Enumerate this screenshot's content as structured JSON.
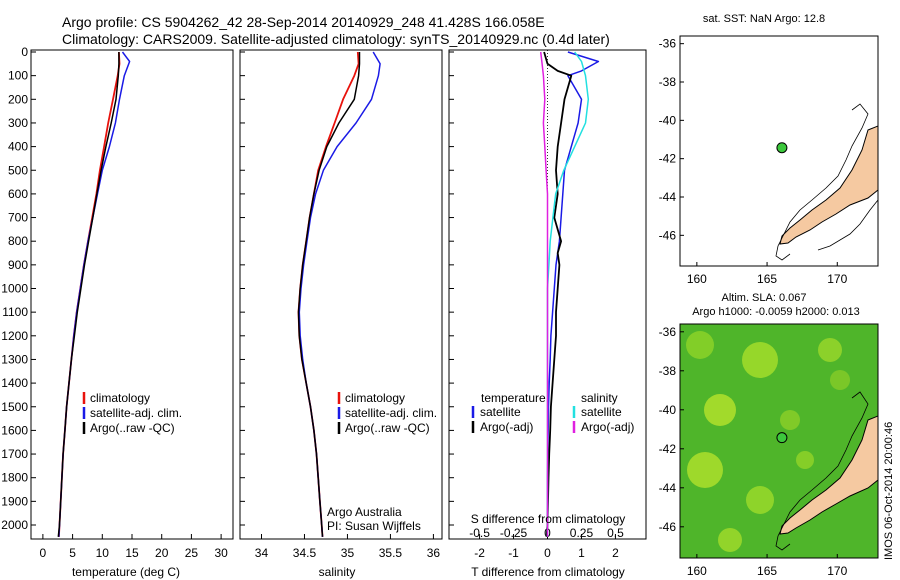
{
  "header": {
    "title_line1": "Argo profile: CS 5904262_42 28-Sep-2014 20140929_248 41.428S 166.058E",
    "title_line2": "Climatology: CARS2009. Satellite-adjusted climatology: synTS_20140929.nc (0.4d later)"
  },
  "colors": {
    "climatology": "#e8120c",
    "satellite": "#1a1ae6",
    "argo": "#000000",
    "satellite_s": "#22e0e0",
    "argo_s": "#e020e0",
    "land": "#f5c9a1",
    "float": "#3cc83c"
  },
  "depth_ticks": [
    "0",
    "100",
    "200",
    "300",
    "400",
    "500",
    "600",
    "700",
    "800",
    "900",
    "1000",
    "1100",
    "1200",
    "1300",
    "1400",
    "1500",
    "1600",
    "1700",
    "1800",
    "1900",
    "2000"
  ],
  "legend_main": [
    "climatology",
    "satellite-adj. clim.",
    "Argo(..raw -QC)"
  ],
  "legend_diff": {
    "t_header": "temperature",
    "s_header": "salinity",
    "t_items": [
      "satellite",
      "Argo(-adj)"
    ],
    "s_items": [
      "satellite",
      "Argo(-adj)"
    ]
  },
  "credits": {
    "org": "Argo Australia",
    "pi": "PI: Susan Wijffels"
  },
  "diff_labels": {
    "s_label": "S difference from climatology",
    "t_label": "T difference from climatology"
  },
  "map1": {
    "title": "sat. SST: NaN Argo: 12.8"
  },
  "map2": {
    "title_line1": "Altim. SLA: 0.067",
    "title_line2": "Argo h1000: -0.0059 h2000: 0.013",
    "stamp": "IMOS 06-Oct-2014 20:00:46"
  },
  "chart_data": [
    {
      "type": "line",
      "id": "temperature",
      "xlabel": "temperature (deg C)",
      "ylabel": "",
      "xlim": [
        -2,
        32
      ],
      "ylim": [
        2070,
        0
      ],
      "xticks": [
        "0",
        "5",
        "10",
        "15",
        "20",
        "25",
        "30"
      ],
      "series": [
        {
          "name": "climatology",
          "points": [
            [
              12.8,
              0
            ],
            [
              12.9,
              50
            ],
            [
              12.6,
              100
            ],
            [
              11.8,
              200
            ],
            [
              11.0,
              300
            ],
            [
              10.3,
              400
            ],
            [
              9.6,
              500
            ],
            [
              9.0,
              600
            ],
            [
              8.3,
              700
            ],
            [
              7.6,
              800
            ],
            [
              6.9,
              900
            ],
            [
              6.3,
              1000
            ],
            [
              5.7,
              1100
            ],
            [
              5.2,
              1200
            ],
            [
              4.8,
              1300
            ],
            [
              4.4,
              1400
            ],
            [
              4.0,
              1500
            ],
            [
              3.7,
              1600
            ],
            [
              3.4,
              1700
            ],
            [
              3.2,
              1800
            ],
            [
              3.0,
              1900
            ],
            [
              2.8,
              2000
            ],
            [
              2.7,
              2050
            ]
          ]
        },
        {
          "name": "satellite-adj. clim.",
          "points": [
            [
              13.4,
              0
            ],
            [
              14.6,
              40
            ],
            [
              13.7,
              100
            ],
            [
              12.9,
              200
            ],
            [
              12.2,
              300
            ],
            [
              11.2,
              400
            ],
            [
              10.0,
              500
            ],
            [
              9.2,
              600
            ],
            [
              8.4,
              700
            ],
            [
              7.6,
              800
            ],
            [
              6.9,
              900
            ],
            [
              6.3,
              1000
            ],
            [
              5.7,
              1100
            ],
            [
              5.2,
              1200
            ],
            [
              4.8,
              1300
            ],
            [
              4.4,
              1400
            ],
            [
              4.0,
              1500
            ],
            [
              3.7,
              1600
            ],
            [
              3.4,
              1700
            ],
            [
              3.2,
              1800
            ],
            [
              3.0,
              1900
            ],
            [
              2.8,
              2000
            ],
            [
              2.7,
              2050
            ]
          ]
        },
        {
          "name": "Argo(..raw -QC)",
          "points": [
            [
              12.8,
              0
            ],
            [
              12.8,
              50
            ],
            [
              12.7,
              100
            ],
            [
              12.3,
              200
            ],
            [
              11.5,
              300
            ],
            [
              10.6,
              400
            ],
            [
              9.8,
              500
            ],
            [
              9.1,
              600
            ],
            [
              8.4,
              700
            ],
            [
              7.7,
              800
            ],
            [
              7.0,
              900
            ],
            [
              6.4,
              1000
            ],
            [
              5.8,
              1100
            ],
            [
              5.3,
              1200
            ],
            [
              4.8,
              1300
            ],
            [
              4.4,
              1400
            ],
            [
              4.0,
              1500
            ],
            [
              3.7,
              1600
            ],
            [
              3.4,
              1700
            ],
            [
              3.2,
              1800
            ],
            [
              3.0,
              1900
            ],
            [
              2.8,
              2000
            ],
            [
              2.6,
              2050
            ]
          ]
        }
      ]
    },
    {
      "type": "line",
      "id": "salinity",
      "xlabel": "salinity",
      "ylabel": "",
      "xlim": [
        33.75,
        36.1
      ],
      "ylim": [
        2070,
        0
      ],
      "xticks": [
        "34",
        "34.5",
        "35",
        "35.5",
        "36"
      ],
      "series": [
        {
          "name": "climatology",
          "points": [
            [
              35.12,
              0
            ],
            [
              35.13,
              50
            ],
            [
              35.08,
              100
            ],
            [
              34.95,
              200
            ],
            [
              34.85,
              300
            ],
            [
              34.75,
              400
            ],
            [
              34.66,
              500
            ],
            [
              34.61,
              600
            ],
            [
              34.56,
              700
            ],
            [
              34.52,
              800
            ],
            [
              34.48,
              900
            ],
            [
              34.45,
              1000
            ],
            [
              34.43,
              1100
            ],
            [
              34.44,
              1200
            ],
            [
              34.47,
              1300
            ],
            [
              34.52,
              1400
            ],
            [
              34.57,
              1500
            ],
            [
              34.61,
              1600
            ],
            [
              34.64,
              1700
            ],
            [
              34.66,
              1800
            ],
            [
              34.68,
              1900
            ],
            [
              34.7,
              2000
            ],
            [
              34.71,
              2050
            ]
          ]
        },
        {
          "name": "satellite-adj. clim.",
          "points": [
            [
              35.3,
              0
            ],
            [
              35.38,
              50
            ],
            [
              35.36,
              100
            ],
            [
              35.28,
              200
            ],
            [
              35.1,
              300
            ],
            [
              34.88,
              400
            ],
            [
              34.72,
              500
            ],
            [
              34.63,
              600
            ],
            [
              34.57,
              700
            ],
            [
              34.53,
              800
            ],
            [
              34.49,
              900
            ],
            [
              34.46,
              1000
            ],
            [
              34.44,
              1100
            ],
            [
              34.45,
              1200
            ],
            [
              34.48,
              1300
            ],
            [
              34.52,
              1400
            ],
            [
              34.57,
              1500
            ],
            [
              34.61,
              1600
            ],
            [
              34.64,
              1700
            ],
            [
              34.66,
              1800
            ],
            [
              34.68,
              1900
            ],
            [
              34.7,
              2000
            ],
            [
              34.71,
              2050
            ]
          ]
        },
        {
          "name": "Argo(..raw -QC)",
          "points": [
            [
              35.14,
              0
            ],
            [
              35.14,
              50
            ],
            [
              35.13,
              100
            ],
            [
              35.08,
              200
            ],
            [
              34.9,
              300
            ],
            [
              34.76,
              400
            ],
            [
              34.67,
              500
            ],
            [
              34.61,
              600
            ],
            [
              34.56,
              700
            ],
            [
              34.52,
              800
            ],
            [
              34.48,
              900
            ],
            [
              34.45,
              1000
            ],
            [
              34.43,
              1100
            ],
            [
              34.44,
              1200
            ],
            [
              34.47,
              1300
            ],
            [
              34.52,
              1400
            ],
            [
              34.57,
              1500
            ],
            [
              34.61,
              1600
            ],
            [
              34.64,
              1700
            ],
            [
              34.66,
              1800
            ],
            [
              34.68,
              1900
            ],
            [
              34.7,
              2000
            ],
            [
              34.71,
              2050
            ]
          ]
        }
      ]
    },
    {
      "type": "line",
      "id": "differences",
      "xlabel": "T difference from climatology",
      "x2label": "S difference from climatology",
      "ylabel": "",
      "xlim": [
        -2.9,
        2.9
      ],
      "ylim": [
        2070,
        0
      ],
      "xticks": [
        "-2",
        "-1",
        "0",
        "1",
        "2"
      ],
      "x2ticks": [
        "-0.5",
        "-0.25",
        "0",
        "0.25",
        "0.5"
      ],
      "series": [
        {
          "name": "temperature satellite",
          "points": [
            [
              0.6,
              0
            ],
            [
              1.5,
              40
            ],
            [
              1.0,
              80
            ],
            [
              0.6,
              100
            ],
            [
              1.0,
              200
            ],
            [
              0.9,
              300
            ],
            [
              0.7,
              400
            ],
            [
              0.5,
              500
            ],
            [
              0.45,
              600
            ],
            [
              0.4,
              700
            ],
            [
              0.35,
              800
            ],
            [
              0.25,
              900
            ],
            [
              0.2,
              1000
            ],
            [
              0.15,
              1100
            ],
            [
              0.1,
              1200
            ],
            [
              0.08,
              1300
            ],
            [
              0.05,
              1400
            ],
            [
              0.03,
              1500
            ],
            [
              0.02,
              1600
            ],
            [
              0.01,
              1700
            ],
            [
              0.0,
              1800
            ],
            [
              0.0,
              2000
            ]
          ]
        },
        {
          "name": "temperature Argo(-adj)",
          "points": [
            [
              -0.1,
              0
            ],
            [
              0.0,
              50
            ],
            [
              0.3,
              80
            ],
            [
              0.7,
              100
            ],
            [
              0.5,
              200
            ],
            [
              0.4,
              300
            ],
            [
              0.3,
              400
            ],
            [
              0.25,
              500
            ],
            [
              0.3,
              600
            ],
            [
              0.2,
              700
            ],
            [
              0.4,
              800
            ],
            [
              0.3,
              850
            ],
            [
              0.35,
              900
            ],
            [
              0.3,
              1000
            ],
            [
              0.25,
              1100
            ],
            [
              0.25,
              1200
            ],
            [
              0.2,
              1300
            ],
            [
              0.15,
              1400
            ],
            [
              0.1,
              1500
            ],
            [
              0.08,
              1600
            ],
            [
              0.05,
              1700
            ],
            [
              0.03,
              1800
            ],
            [
              0.0,
              2000
            ],
            [
              -0.03,
              2050
            ]
          ]
        },
        {
          "name": "salinity satellite",
          "points": [
            [
              0.2,
              0
            ],
            [
              0.25,
              40
            ],
            [
              0.28,
              100
            ],
            [
              0.3,
              200
            ],
            [
              0.28,
              300
            ],
            [
              0.2,
              400
            ],
            [
              0.12,
              500
            ],
            [
              0.06,
              600
            ],
            [
              0.04,
              700
            ],
            [
              0.02,
              800
            ],
            [
              0.01,
              900
            ],
            [
              0.0,
              1000
            ],
            [
              0.0,
              2050
            ]
          ]
        },
        {
          "name": "salinity Argo(-adj)",
          "points": [
            [
              -0.05,
              0
            ],
            [
              -0.04,
              50
            ],
            [
              -0.03,
              100
            ],
            [
              -0.02,
              200
            ],
            [
              -0.03,
              300
            ],
            [
              -0.02,
              400
            ],
            [
              -0.01,
              500
            ],
            [
              0.0,
              600
            ],
            [
              0.0,
              2050
            ]
          ]
        }
      ]
    },
    {
      "type": "scatter",
      "id": "map-sst",
      "xlabel": "",
      "ylabel": "",
      "xlim": [
        158.8,
        172.9
      ],
      "ylim": [
        -47.6,
        -35.6
      ],
      "xticks": [
        "160",
        "165",
        "170"
      ],
      "yticks": [
        "-36",
        "-38",
        "-40",
        "-42",
        "-44",
        "-46"
      ],
      "series": [
        {
          "name": "Argo float",
          "points": [
            [
              166.058,
              -41.428
            ]
          ]
        }
      ]
    },
    {
      "type": "scatter",
      "id": "map-sla",
      "xlabel": "",
      "ylabel": "",
      "xlim": [
        158.8,
        172.9
      ],
      "ylim": [
        -47.6,
        -35.6
      ],
      "xticks": [
        "160",
        "165",
        "170"
      ],
      "yticks": [
        "-36",
        "-38",
        "-40",
        "-42",
        "-44",
        "-46"
      ],
      "series": [
        {
          "name": "Argo float",
          "points": [
            [
              166.058,
              -41.428
            ]
          ]
        }
      ]
    }
  ]
}
